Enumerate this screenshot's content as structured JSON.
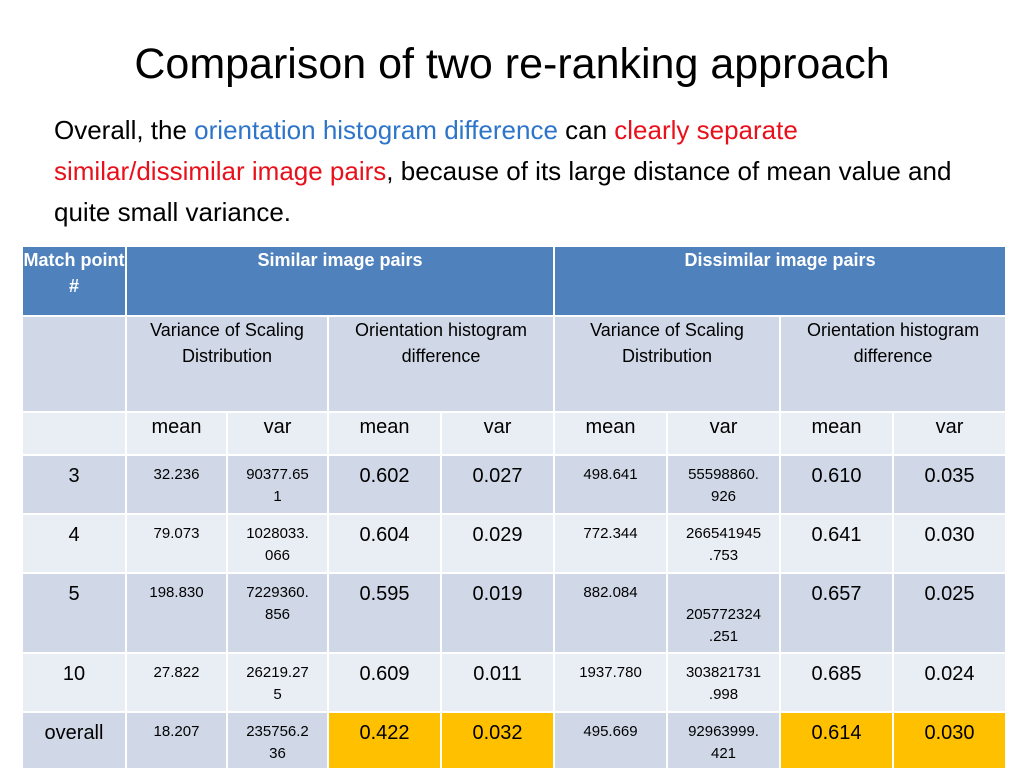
{
  "title": "Comparison of two re-ranking approach",
  "intro": {
    "p1": "Overall, the ",
    "p2": "orientation histogram difference",
    "p3": " can ",
    "p4": "clearly separate similar/dissimilar image pairs",
    "p5": ", because of its large distance of mean value and quite small variance."
  },
  "table": {
    "col_match": "Match point #",
    "group_similar": "Similar image pairs",
    "group_dissimilar": "Dissimilar image pairs",
    "sub_variance": "Variance of Scaling Distribution",
    "sub_orientation": "Orientation histogram difference",
    "mean": "mean",
    "var": "var",
    "rows": [
      {
        "label": "3",
        "s_var_mean": "32.236",
        "s_var_var": "90377.65\n1",
        "s_ori_mean": "0.602",
        "s_ori_var": "0.027",
        "d_var_mean": "498.641",
        "d_var_var": "55598860.\n926",
        "d_ori_mean": "0.610",
        "d_ori_var": "0.035"
      },
      {
        "label": "4",
        "s_var_mean": "79.073",
        "s_var_var": "1028033.\n066",
        "s_ori_mean": "0.604",
        "s_ori_var": "0.029",
        "d_var_mean": "772.344",
        "d_var_var": "266541945\n.753",
        "d_ori_mean": "0.641",
        "d_ori_var": "0.030"
      },
      {
        "label": "5",
        "s_var_mean": "198.830",
        "s_var_var": "7229360.\n856",
        "s_ori_mean": "0.595",
        "s_ori_var": "0.019",
        "d_var_mean": "882.084",
        "d_var_var": "\n205772324\n.251",
        "d_ori_mean": "0.657",
        "d_ori_var": "0.025"
      },
      {
        "label": "10",
        "s_var_mean": "27.822",
        "s_var_var": "26219.27\n5",
        "s_ori_mean": "0.609",
        "s_ori_var": "0.011",
        "d_var_mean": "1937.780",
        "d_var_var": "303821731\n.998",
        "d_ori_mean": "0.685",
        "d_ori_var": "0.024"
      },
      {
        "label": "overall",
        "s_var_mean": "18.207",
        "s_var_var": "235756.2\n36",
        "s_ori_mean": "0.422",
        "s_ori_var": "0.032",
        "d_var_mean": "495.669",
        "d_var_var": "92963999.\n421",
        "d_ori_mean": "0.614",
        "d_ori_var": "0.030"
      }
    ]
  },
  "colors": {
    "header": "#4f81bd",
    "band_dark": "#d0d8e8",
    "band_light": "#e9edf4",
    "highlight": "#ffc000",
    "blue_text": "#2e75c9",
    "red_text": "#e8101a"
  }
}
